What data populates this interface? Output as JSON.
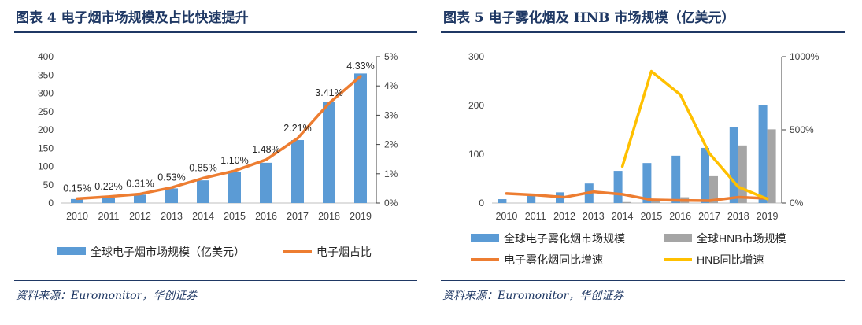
{
  "figure_left": {
    "title": "图表 4   电子烟市场规模及占比快速提升",
    "source": "资料来源：Euromonitor，华创证券"
  },
  "figure_right": {
    "title": "图表 5   电子雾化烟及 HNB 市场规模（亿美元）",
    "source": "资料来源：Euromonitor，华创证券"
  },
  "colors": {
    "bar_blue": "#5b9bd5",
    "bar_gray": "#a5a5a5",
    "line_orange": "#ed7d31",
    "line_yellow": "#ffc000",
    "title_navy": "#1f3864"
  },
  "chart_data": [
    {
      "type": "bar",
      "categories": [
        "2010",
        "2011",
        "2012",
        "2013",
        "2014",
        "2015",
        "2016",
        "2017",
        "2018",
        "2019"
      ],
      "series": [
        {
          "name": "全球电子烟市场规模（亿美元）",
          "type": "bar",
          "axis": "left",
          "values": [
            11,
            14,
            23,
            40,
            62,
            84,
            110,
            172,
            276,
            354
          ]
        },
        {
          "name": "电子烟占比",
          "type": "line",
          "axis": "right",
          "values": [
            0.15,
            0.22,
            0.31,
            0.53,
            0.85,
            1.1,
            1.48,
            2.21,
            3.41,
            4.33
          ],
          "data_labels": [
            "0.15%",
            "0.22%",
            "0.31%",
            "0.53%",
            "0.85%",
            "1.10%",
            "1.48%",
            "2.21%",
            "3.41%",
            "4.33%"
          ]
        }
      ],
      "y_left": {
        "ylim": [
          0,
          400
        ],
        "ticks": [
          "0",
          "50",
          "100",
          "150",
          "200",
          "250",
          "300",
          "350",
          "400"
        ]
      },
      "y_right": {
        "ylim": [
          0,
          5
        ],
        "ticks": [
          "0%",
          "1%",
          "2%",
          "3%",
          "4%",
          "5%"
        ]
      },
      "grid": false,
      "legend_position": "bottom"
    },
    {
      "type": "bar",
      "categories": [
        "2010",
        "2011",
        "2012",
        "2013",
        "2014",
        "2015",
        "2016",
        "2017",
        "2018",
        "2019"
      ],
      "series": [
        {
          "name": "全球电子雾化烟市场规模",
          "type": "bar",
          "axis": "left",
          "values": [
            8,
            16,
            22,
            40,
            66,
            82,
            97,
            113,
            156,
            201
          ]
        },
        {
          "name": "全球HNB市场规模",
          "type": "bar",
          "axis": "left",
          "values": [
            0,
            0,
            0,
            0,
            2,
            6,
            12,
            55,
            118,
            151
          ]
        },
        {
          "name": "电子雾化烟同比增速",
          "type": "line",
          "axis": "right",
          "values": [
            65,
            55,
            40,
            77,
            60,
            22,
            18,
            16,
            40,
            32
          ]
        },
        {
          "name": "HNB同比增速",
          "type": "line",
          "axis": "right",
          "values": [
            null,
            null,
            null,
            null,
            250,
            900,
            740,
            340,
            110,
            28
          ]
        }
      ],
      "y_left": {
        "ylim": [
          0,
          300
        ],
        "ticks": [
          "0",
          "100",
          "200",
          "300"
        ]
      },
      "y_right": {
        "ylim": [
          0,
          1000
        ],
        "ticks": [
          "0%",
          "500%",
          "1000%"
        ]
      },
      "grid": false,
      "legend_position": "bottom"
    }
  ]
}
